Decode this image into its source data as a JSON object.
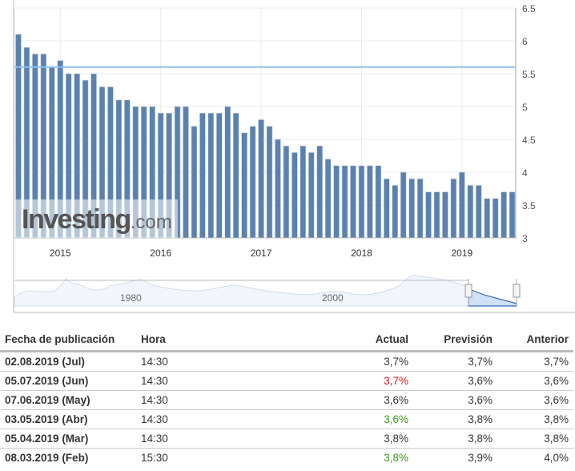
{
  "chart_data": {
    "type": "bar",
    "title": "",
    "x": [
      "2014-08",
      "2014-09",
      "2014-10",
      "2014-11",
      "2014-12",
      "2015-01",
      "2015-02",
      "2015-03",
      "2015-04",
      "2015-05",
      "2015-06",
      "2015-07",
      "2015-08",
      "2015-09",
      "2015-10",
      "2015-11",
      "2015-12",
      "2016-01",
      "2016-02",
      "2016-03",
      "2016-04",
      "2016-05",
      "2016-06",
      "2016-07",
      "2016-08",
      "2016-09",
      "2016-10",
      "2016-11",
      "2016-12",
      "2017-01",
      "2017-02",
      "2017-03",
      "2017-04",
      "2017-05",
      "2017-06",
      "2017-07",
      "2017-08",
      "2017-09",
      "2017-10",
      "2017-11",
      "2017-12",
      "2018-01",
      "2018-02",
      "2018-03",
      "2018-04",
      "2018-05",
      "2018-06",
      "2018-07",
      "2018-08",
      "2018-09",
      "2018-10",
      "2018-11",
      "2018-12",
      "2019-01",
      "2019-02",
      "2019-03",
      "2019-04",
      "2019-05",
      "2019-06",
      "2019-07"
    ],
    "values": [
      6.1,
      5.9,
      5.8,
      5.8,
      5.6,
      5.7,
      5.5,
      5.5,
      5.4,
      5.5,
      5.3,
      5.3,
      5.1,
      5.1,
      5.0,
      5.0,
      5.0,
      4.9,
      4.9,
      5.0,
      5.0,
      4.7,
      4.9,
      4.9,
      4.9,
      5.0,
      4.9,
      4.6,
      4.7,
      4.8,
      4.7,
      4.5,
      4.4,
      4.3,
      4.4,
      4.3,
      4.4,
      4.2,
      4.1,
      4.1,
      4.1,
      4.1,
      4.1,
      4.1,
      3.9,
      3.8,
      4.0,
      3.9,
      3.9,
      3.7,
      3.7,
      3.7,
      3.9,
      4.0,
      3.8,
      3.8,
      3.6,
      3.6,
      3.7,
      3.7
    ],
    "reference_line": 5.6,
    "xtick_labels": [
      "2015",
      "2016",
      "2017",
      "2018",
      "2019"
    ],
    "ytick_labels": [
      "3",
      "3.5",
      "4",
      "4.5",
      "5",
      "5.5",
      "6",
      "6.5"
    ],
    "ylim": [
      3,
      6.5
    ],
    "grid": true,
    "colors": {
      "bar": "#5b81ae",
      "reference_line": "#8fc0ee"
    },
    "navigator_labels": [
      "1980",
      "2000"
    ],
    "watermark": "Investing.com"
  },
  "table": {
    "headers": {
      "date": "Fecha de publicación",
      "time": "Hora",
      "actual": "Actual",
      "forecast": "Previsión",
      "previous": "Anterior"
    },
    "rows": [
      {
        "date": "02.08.2019 (Jul)",
        "time": "14:30",
        "actual": "3,7%",
        "forecast": "3,7%",
        "previous": "3,7%",
        "actual_color": "#333333"
      },
      {
        "date": "05.07.2019 (Jun)",
        "time": "14:30",
        "actual": "3,7%",
        "forecast": "3,6%",
        "previous": "3,6%",
        "actual_color": "#ee1111"
      },
      {
        "date": "07.06.2019 (May)",
        "time": "14:30",
        "actual": "3,6%",
        "forecast": "3,6%",
        "previous": "3,6%",
        "actual_color": "#333333"
      },
      {
        "date": "03.05.2019 (Abr)",
        "time": "14:30",
        "actual": "3,6%",
        "forecast": "3,8%",
        "previous": "3,8%",
        "actual_color": "#3a9a1a"
      },
      {
        "date": "05.04.2019 (Mar)",
        "time": "14:30",
        "actual": "3,8%",
        "forecast": "3,8%",
        "previous": "3,8%",
        "actual_color": "#333333"
      },
      {
        "date": "08.03.2019 (Feb)",
        "time": "15:30",
        "actual": "3,8%",
        "forecast": "3,9%",
        "previous": "4,0%",
        "actual_color": "#3a9a1a"
      }
    ]
  }
}
